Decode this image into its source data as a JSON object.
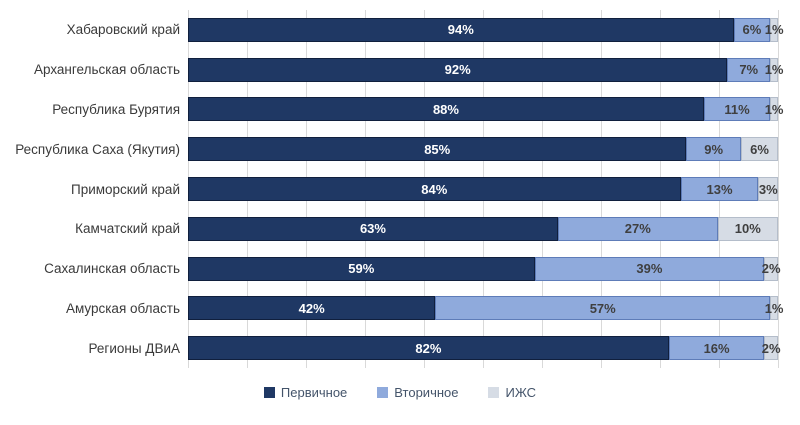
{
  "chart_data": {
    "type": "bar",
    "orientation": "horizontal",
    "stacked": true,
    "title": "",
    "xlabel": "",
    "ylabel": "",
    "xlim": [
      0,
      100
    ],
    "grid": "vertical gridlines every 10%",
    "legend_position": "bottom",
    "value_suffix": "%",
    "categories": [
      "Хабаровский край",
      "Архангельская область",
      "Республика Бурятия",
      "Республика Саха (Якутия)",
      "Приморский край",
      "Камчатский край",
      "Сахалинская область",
      "Амурская область",
      "Регионы ДВиА"
    ],
    "series": [
      {
        "name": "Первичное",
        "color": "#1F3864",
        "values": [
          94,
          92,
          88,
          85,
          84,
          63,
          59,
          42,
          82
        ]
      },
      {
        "name": "Вторичное",
        "color": "#8FAADC",
        "values": [
          6,
          7,
          11,
          9,
          13,
          27,
          39,
          57,
          16
        ]
      },
      {
        "name": "ИЖС",
        "color": "#D6DCE5",
        "values": [
          1,
          1,
          1,
          6,
          3,
          10,
          2,
          1,
          2
        ]
      }
    ]
  },
  "legend": {
    "items": [
      {
        "label": "Первичное",
        "color": "#1F3864"
      },
      {
        "label": "Вторичное",
        "color": "#8FAADC"
      },
      {
        "label": "ИЖС",
        "color": "#D6DCE5"
      }
    ]
  },
  "colors": {
    "primary": "#1F3864",
    "secondary": "#8FAADC",
    "izhs": "#D6DCE5",
    "gridline": "#D9D9D9",
    "label_dark": "#3F3F3F",
    "label_light": "#FFFFFF"
  }
}
